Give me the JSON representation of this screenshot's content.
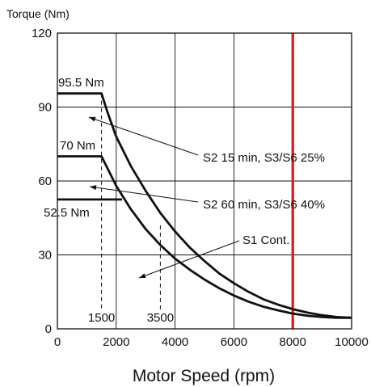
{
  "chart_data": {
    "type": "line",
    "ylabel": "Torque (Nm)",
    "xlabel": "Motor Speed (rpm)",
    "xlim": [
      0,
      10000
    ],
    "ylim": [
      0,
      120
    ],
    "x_ticks": [
      "0",
      "2000",
      "4000",
      "6000",
      "8000",
      "10000"
    ],
    "y_ticks": [
      "0",
      "30",
      "60",
      "90",
      "120"
    ],
    "grid": true,
    "series": [
      {
        "name": "S2 15 min, S3/S6 25%",
        "peak_label": "95.5 Nm",
        "points": [
          [
            0,
            95.5
          ],
          [
            1500,
            95.5
          ],
          [
            1700,
            88
          ],
          [
            2000,
            78
          ],
          [
            2500,
            66
          ],
          [
            3000,
            56
          ],
          [
            3500,
            47
          ],
          [
            4000,
            39.5
          ],
          [
            4500,
            33
          ],
          [
            5000,
            27.5
          ],
          [
            5500,
            22.5
          ],
          [
            6000,
            18.5
          ],
          [
            6500,
            15
          ],
          [
            7000,
            12
          ],
          [
            7500,
            9.8
          ],
          [
            8000,
            8
          ],
          [
            8500,
            6.6
          ],
          [
            9000,
            5.5
          ],
          [
            9500,
            4.8
          ],
          [
            10000,
            4.5
          ]
        ]
      },
      {
        "name": "S2 60 min, S3/S6 40%",
        "peak_label": "70 Nm",
        "points": [
          [
            0,
            70
          ],
          [
            1500,
            70
          ],
          [
            1750,
            64
          ],
          [
            2000,
            58
          ],
          [
            2500,
            48.5
          ],
          [
            3000,
            40.5
          ],
          [
            3500,
            34
          ],
          [
            4000,
            28.5
          ],
          [
            4500,
            24
          ],
          [
            5000,
            20
          ],
          [
            5500,
            16.5
          ],
          [
            6000,
            13.5
          ],
          [
            6500,
            11
          ],
          [
            7000,
            9
          ],
          [
            7500,
            7.5
          ],
          [
            8000,
            6.2
          ],
          [
            8500,
            5.3
          ],
          [
            9000,
            4.8
          ],
          [
            9500,
            4.5
          ],
          [
            10000,
            4.5
          ]
        ]
      },
      {
        "name": "S1 Cont.",
        "peak_label": "52.5 Nm",
        "points": [
          [
            0,
            52.5
          ],
          [
            2200,
            52.5
          ]
        ]
      }
    ],
    "markers": [
      {
        "x": 1500,
        "label": "1500",
        "style": "dashed",
        "y_top": 95.5
      },
      {
        "x": 3500,
        "label": "3500",
        "style": "dashed",
        "y_top": 42
      },
      {
        "x": 8000,
        "label": "",
        "style": "solid",
        "color": "#e8141c"
      }
    ],
    "colors": {
      "curve": "#111111",
      "grid": "#111111",
      "limit": "#e8141c"
    }
  }
}
